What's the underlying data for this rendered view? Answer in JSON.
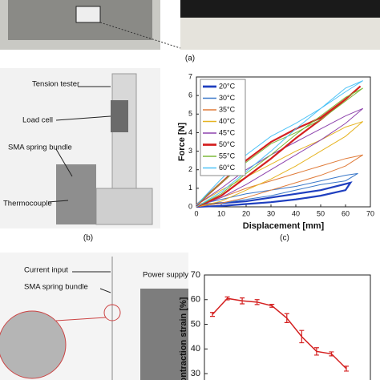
{
  "labels": {
    "panel_a": "(a)",
    "panel_b": "(b)",
    "panel_c": "(c)",
    "tension_tester": "Tension tester",
    "load_cell": "Load cell",
    "sma_bundle_b": "SMA spring bundle",
    "thermocouple": "Thermocouple",
    "current_input": "Current input",
    "sma_bundle_d": "SMA spring bundle",
    "power_supply": "Power supply"
  },
  "chart_data": [
    {
      "type": "line",
      "xlabel": "Displacement [mm]",
      "ylabel": "Force [N]",
      "xlim": [
        0,
        70
      ],
      "ylim": [
        0,
        7
      ],
      "xticks": [
        0,
        10,
        20,
        30,
        40,
        50,
        60,
        70
      ],
      "yticks": [
        0,
        1,
        2,
        3,
        4,
        5,
        6,
        7
      ],
      "legend": "upper left",
      "series": [
        {
          "name": "20°C",
          "color": "#1f3fbf",
          "width": 2.2,
          "x": [
            0,
            10,
            20,
            30,
            40,
            50,
            62,
            60,
            50,
            40,
            30,
            20,
            10,
            0
          ],
          "values": [
            0.1,
            0.2,
            0.3,
            0.5,
            0.7,
            0.9,
            1.3,
            0.9,
            0.6,
            0.4,
            0.25,
            0.15,
            0.05,
            0
          ]
        },
        {
          "name": "30°C",
          "color": "#3a78c9",
          "width": 1,
          "x": [
            0,
            10,
            20,
            30,
            40,
            50,
            60,
            65,
            60,
            50,
            40,
            30,
            20,
            10,
            0
          ],
          "values": [
            0.1,
            0.4,
            0.7,
            0.9,
            1.1,
            1.4,
            1.7,
            1.8,
            1.4,
            1.2,
            0.9,
            0.6,
            0.4,
            0.2,
            0
          ]
        },
        {
          "name": "35°C",
          "color": "#e07b39",
          "width": 1,
          "x": [
            0,
            10,
            20,
            30,
            40,
            50,
            60,
            67,
            60,
            50,
            40,
            30,
            20,
            10,
            0
          ],
          "values": [
            0.1,
            0.5,
            1.0,
            1.4,
            1.8,
            2.2,
            2.6,
            2.8,
            2.2,
            1.7,
            1.3,
            0.9,
            0.5,
            0.2,
            0
          ]
        },
        {
          "name": "40°C",
          "color": "#e6b422",
          "width": 1,
          "x": [
            0,
            10,
            20,
            30,
            40,
            50,
            60,
            67,
            60,
            50,
            40,
            30,
            20,
            10,
            0
          ],
          "values": [
            0.1,
            0.9,
            1.6,
            2.3,
            3.0,
            3.6,
            4.3,
            4.6,
            3.8,
            3.0,
            2.2,
            1.5,
            0.9,
            0.3,
            0
          ]
        },
        {
          "name": "45°C",
          "color": "#8e44ad",
          "width": 1,
          "x": [
            0,
            10,
            20,
            30,
            40,
            50,
            60,
            67,
            60,
            50,
            40,
            30,
            20,
            10,
            0
          ],
          "values": [
            0.1,
            1.0,
            2.0,
            2.8,
            3.5,
            4.2,
            4.9,
            5.3,
            4.5,
            3.6,
            2.8,
            2.0,
            1.2,
            0.5,
            0
          ]
        },
        {
          "name": "50°C",
          "color": "#d42020",
          "width": 2.2,
          "x": [
            0,
            10,
            20,
            30,
            40,
            50,
            60,
            66,
            60,
            50,
            40,
            30,
            20,
            10,
            0
          ],
          "values": [
            0.1,
            1.3,
            2.5,
            3.5,
            4.2,
            4.8,
            5.8,
            6.5,
            5.8,
            4.7,
            3.7,
            2.6,
            1.6,
            0.6,
            0
          ]
        },
        {
          "name": "55°C",
          "color": "#7dba3a",
          "width": 1,
          "x": [
            0,
            10,
            20,
            30,
            40,
            50,
            60,
            67,
            60,
            50,
            40,
            30,
            20,
            10,
            0
          ],
          "values": [
            0.1,
            1.3,
            2.4,
            3.4,
            4.0,
            4.7,
            5.7,
            6.4,
            5.9,
            4.9,
            3.9,
            2.8,
            1.8,
            0.7,
            0
          ]
        },
        {
          "name": "60°C",
          "color": "#4fc3f7",
          "width": 1,
          "x": [
            0,
            10,
            20,
            30,
            40,
            50,
            60,
            67,
            60,
            50,
            40,
            30,
            20,
            10,
            0
          ],
          "values": [
            0.1,
            1.5,
            2.8,
            3.8,
            4.5,
            5.3,
            6.2,
            6.8,
            6.4,
            5.3,
            4.2,
            3.0,
            1.9,
            0.8,
            0
          ]
        }
      ]
    },
    {
      "type": "errorbar",
      "ylabel": "Contraction strain [%]",
      "ylim": [
        30,
        70
      ],
      "yticks": [
        30,
        40,
        50,
        60,
        70
      ],
      "color": "#d42020",
      "categories": [
        null,
        null,
        null,
        null,
        null,
        null,
        null,
        null,
        null,
        null
      ],
      "values": [
        54,
        60.5,
        59.5,
        59,
        57.5,
        52.5,
        45,
        39,
        38,
        32
      ],
      "errors": [
        0.8,
        0.6,
        1.2,
        1,
        0.6,
        1.8,
        2.5,
        1.5,
        0.8,
        1
      ]
    }
  ]
}
